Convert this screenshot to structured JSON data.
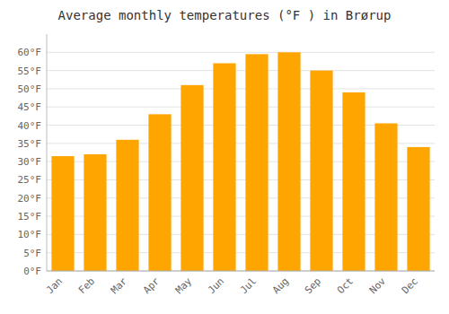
{
  "chart_data": {
    "type": "bar",
    "title": "Average monthly temperatures (°F ) in Brørup",
    "categories": [
      "Jan",
      "Feb",
      "Mar",
      "Apr",
      "May",
      "Jun",
      "Jul",
      "Aug",
      "Sep",
      "Oct",
      "Nov",
      "Dec"
    ],
    "values": [
      31.5,
      32.0,
      36.0,
      43.0,
      51.0,
      57.0,
      59.5,
      60.0,
      55.0,
      49.0,
      40.5,
      34.0
    ],
    "color": "#FFA500",
    "ylim": [
      0,
      65
    ],
    "yticks": [
      {
        "value": 0,
        "label": "0°F"
      },
      {
        "value": 5,
        "label": "5°F"
      },
      {
        "value": 10,
        "label": "10°F"
      },
      {
        "value": 15,
        "label": "15°F"
      },
      {
        "value": 20,
        "label": "20°F"
      },
      {
        "value": 25,
        "label": "25°F"
      },
      {
        "value": 30,
        "label": "30°F"
      },
      {
        "value": 35,
        "label": "35°F"
      },
      {
        "value": 40,
        "label": "40°F"
      },
      {
        "value": 45,
        "label": "45°F"
      },
      {
        "value": 50,
        "label": "50°F"
      },
      {
        "value": 55,
        "label": "55°F"
      },
      {
        "value": 60,
        "label": "60°F"
      }
    ],
    "grid": true
  }
}
